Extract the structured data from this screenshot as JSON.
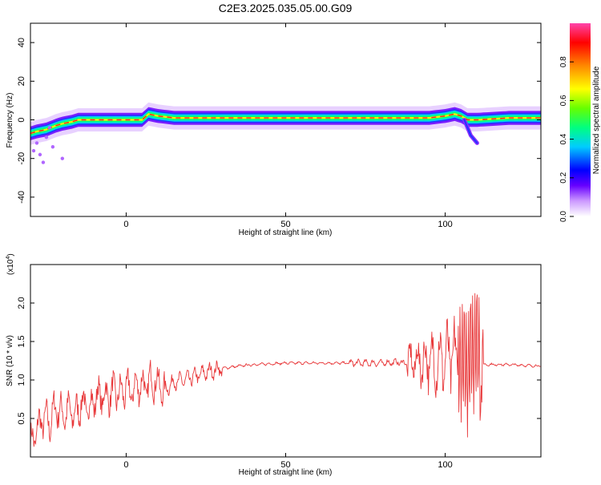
{
  "title": "C2E3.2025.035.05.00.G09",
  "chart_data": [
    {
      "type": "heatmap",
      "title": "C2E3.2025.035.05.00.G09",
      "xlabel": "Height of straight line (km)",
      "ylabel": "Frequency (Hz)",
      "xlim": [
        -30,
        130
      ],
      "ylim": [
        -50,
        50
      ],
      "x_ticks": [
        0,
        50,
        100
      ],
      "y_ticks": [
        40,
        20,
        0,
        -20,
        -40
      ],
      "colorbar": {
        "label": "Normalized spectral amplitude",
        "range": [
          0,
          1
        ],
        "ticks": [
          "0.0",
          "0.2",
          "0.4",
          "0.6",
          "0.8"
        ],
        "colors": [
          "#ffffff",
          "#cc99ff",
          "#6600ff",
          "#0000ff",
          "#00ccff",
          "#00ff80",
          "#66ff00",
          "#ffff00",
          "#ff8800",
          "#ff0000",
          "#ff44aa"
        ]
      },
      "frequency_track": {
        "x": [
          -30,
          -28,
          -25,
          -22,
          -20,
          -17,
          -15,
          -12,
          -10,
          -5,
          0,
          5,
          7,
          10,
          15,
          20,
          30,
          40,
          50,
          60,
          70,
          80,
          90,
          95,
          100,
          103,
          105,
          107,
          110,
          120,
          130
        ],
        "y": [
          -7,
          -6,
          -5,
          -3,
          -2,
          -1,
          0,
          0,
          0,
          0,
          0,
          0,
          3,
          2,
          1,
          1,
          1,
          1,
          1,
          1,
          1,
          1,
          1,
          1,
          2,
          3,
          2,
          0,
          0,
          1,
          1
        ]
      },
      "branch": {
        "x": [
          106,
          107,
          108,
          109,
          110
        ],
        "y": [
          0,
          -4,
          -8,
          -10,
          -12
        ]
      }
    },
    {
      "type": "line",
      "xlabel": "Height of straight line (km)",
      "ylabel": "SNR (10 * v/v)",
      "y_multiplier": "(x10",
      "y_multiplier_exp": "4",
      "y_multiplier_close": ")",
      "xlim": [
        -30,
        130
      ],
      "ylim": [
        0,
        2.5
      ],
      "x_ticks": [
        0,
        50,
        100
      ],
      "y_ticks": [
        "0.5",
        "1.0",
        "1.5",
        "2.0"
      ],
      "color": "#e8383a",
      "series": [
        {
          "x": [
            -30,
            -28,
            -26,
            -24,
            -22,
            -20,
            -18,
            -16,
            -14,
            -12,
            -10,
            -8,
            -6,
            -4,
            -2,
            0,
            2,
            4,
            6,
            8,
            10,
            12,
            14,
            16,
            18,
            20,
            25,
            30,
            35,
            40,
            50,
            60,
            70,
            80,
            85,
            88,
            90,
            92,
            94,
            96,
            98,
            100,
            102,
            104,
            105,
            106,
            107,
            108,
            109,
            110,
            111,
            113,
            120,
            130
          ],
          "y": [
            0.15,
            0.35,
            0.5,
            0.45,
            0.65,
            0.55,
            0.6,
            0.55,
            0.7,
            0.62,
            0.75,
            0.8,
            0.78,
            0.85,
            0.82,
            0.88,
            0.85,
            0.95,
            0.9,
            1.0,
            0.95,
            0.85,
            0.95,
            0.98,
            1.0,
            1.02,
            1.1,
            1.15,
            1.18,
            1.2,
            1.22,
            1.22,
            1.22,
            1.22,
            1.23,
            1.22,
            1.24,
            1.23,
            1.25,
            1.24,
            1.25,
            1.28,
            1.3,
            1.25,
            1.2,
            1.4,
            1.0,
            1.5,
            1.3,
            1.6,
            1.2,
            1.2,
            1.2,
            1.18
          ]
        }
      ]
    }
  ]
}
